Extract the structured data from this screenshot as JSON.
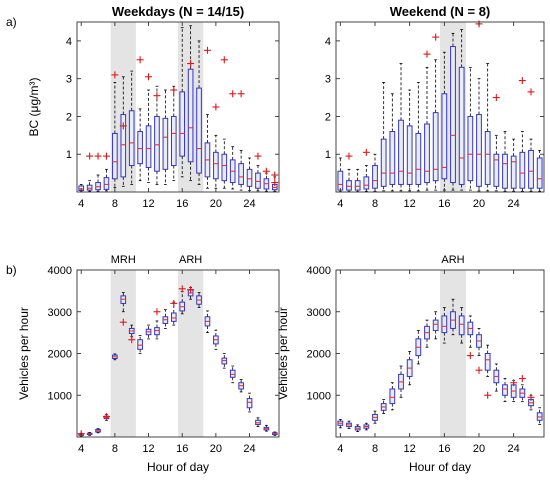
{
  "chart_data": [
    {
      "type": "box",
      "panel": "a)",
      "title": "Weekdays (N = 14/15)",
      "ylabel": "BC (μg/m³)",
      "xlabel": "",
      "xlim": [
        3.5,
        27.5
      ],
      "ylim": [
        0,
        4.5
      ],
      "xticks": [
        "4",
        "8",
        "12",
        "16",
        "20",
        "24"
      ],
      "yticks": [
        "1",
        "2",
        "3",
        "4"
      ],
      "shaded_ranges": [
        [
          7.5,
          10.5
        ],
        [
          15.5,
          18.5
        ]
      ],
      "rush_labels": [],
      "boxes": [
        {
          "x": 4,
          "q1": 0.04,
          "med": 0.08,
          "q3": 0.16,
          "wlo": 0.01,
          "whi": 0.2
        },
        {
          "x": 5,
          "q1": 0.05,
          "med": 0.1,
          "q3": 0.18,
          "wlo": 0.02,
          "whi": 0.3
        },
        {
          "x": 6,
          "q1": 0.06,
          "med": 0.14,
          "q3": 0.25,
          "wlo": 0.02,
          "whi": 0.45
        },
        {
          "x": 7,
          "q1": 0.07,
          "med": 0.2,
          "q3": 0.38,
          "wlo": 0.03,
          "whi": 0.6
        },
        {
          "x": 8,
          "q1": 0.35,
          "med": 0.8,
          "q3": 1.55,
          "wlo": 0.12,
          "whi": 2.9
        },
        {
          "x": 9,
          "q1": 0.4,
          "med": 1.25,
          "q3": 2.05,
          "wlo": 0.15,
          "whi": 3.05
        },
        {
          "x": 10,
          "q1": 0.7,
          "med": 1.3,
          "q3": 2.15,
          "wlo": 0.2,
          "whi": 3.2
        },
        {
          "x": 11,
          "q1": 0.75,
          "med": 1.15,
          "q3": 1.6,
          "wlo": 0.3,
          "whi": 2.2
        },
        {
          "x": 12,
          "q1": 0.65,
          "med": 1.15,
          "q3": 1.75,
          "wlo": 0.25,
          "whi": 2.7
        },
        {
          "x": 13,
          "q1": 0.55,
          "med": 1.25,
          "q3": 2.0,
          "wlo": 0.2,
          "whi": 2.8
        },
        {
          "x": 14,
          "q1": 0.6,
          "med": 1.45,
          "q3": 1.95,
          "wlo": 0.2,
          "whi": 2.7
        },
        {
          "x": 15,
          "q1": 0.7,
          "med": 1.55,
          "q3": 2.0,
          "wlo": 0.3,
          "whi": 2.8
        },
        {
          "x": 16,
          "q1": 0.95,
          "med": 1.55,
          "q3": 2.65,
          "wlo": 0.4,
          "whi": 4.35
        },
        {
          "x": 17,
          "q1": 0.8,
          "med": 1.7,
          "q3": 3.25,
          "wlo": 0.3,
          "whi": 4.4
        },
        {
          "x": 18,
          "q1": 0.5,
          "med": 1.15,
          "q3": 2.75,
          "wlo": 0.2,
          "whi": 4.0
        },
        {
          "x": 19,
          "q1": 0.4,
          "med": 0.85,
          "q3": 1.3,
          "wlo": 0.1,
          "whi": 2.05
        },
        {
          "x": 20,
          "q1": 0.35,
          "med": 0.75,
          "q3": 1.05,
          "wlo": 0.1,
          "whi": 1.5
        },
        {
          "x": 21,
          "q1": 0.3,
          "med": 0.7,
          "q3": 1.0,
          "wlo": 0.1,
          "whi": 1.4
        },
        {
          "x": 22,
          "q1": 0.25,
          "med": 0.55,
          "q3": 0.85,
          "wlo": 0.08,
          "whi": 1.2
        },
        {
          "x": 23,
          "q1": 0.2,
          "med": 0.4,
          "q3": 0.75,
          "wlo": 0.05,
          "whi": 1.1
        },
        {
          "x": 24,
          "q1": 0.15,
          "med": 0.35,
          "q3": 0.6,
          "wlo": 0.04,
          "whi": 0.9
        },
        {
          "x": 25,
          "q1": 0.1,
          "med": 0.28,
          "q3": 0.5,
          "wlo": 0.03,
          "whi": 0.7
        },
        {
          "x": 26,
          "q1": 0.08,
          "med": 0.22,
          "q3": 0.35,
          "wlo": 0.02,
          "whi": 0.5
        },
        {
          "x": 27,
          "q1": 0.06,
          "med": 0.12,
          "q3": 0.2,
          "wlo": 0.02,
          "whi": 0.4
        }
      ],
      "outliers": [
        {
          "x": 5,
          "y": 0.95
        },
        {
          "x": 6,
          "y": 0.95
        },
        {
          "x": 7,
          "y": 0.95
        },
        {
          "x": 8,
          "y": 3.1
        },
        {
          "x": 9,
          "y": 1.75
        },
        {
          "x": 11,
          "y": 3.5
        },
        {
          "x": 12,
          "y": 3.05
        },
        {
          "x": 13,
          "y": 2.55
        },
        {
          "x": 15,
          "y": 2.7
        },
        {
          "x": 17,
          "y": 3.4
        },
        {
          "x": 19,
          "y": 3.75
        },
        {
          "x": 20,
          "y": 2.25
        },
        {
          "x": 21,
          "y": 3.5
        },
        {
          "x": 22,
          "y": 2.6
        },
        {
          "x": 23,
          "y": 2.6
        },
        {
          "x": 25,
          "y": 0.95
        },
        {
          "x": 26,
          "y": 0.55
        },
        {
          "x": 27,
          "y": 0.45
        },
        {
          "x": 27,
          "y": 0.25
        }
      ]
    },
    {
      "type": "box",
      "panel": "",
      "title": "Weekend (N = 8)",
      "ylabel": "",
      "xlabel": "",
      "xlim": [
        3.5,
        27.5
      ],
      "ylim": [
        0,
        4.5
      ],
      "xticks": [
        "4",
        "8",
        "12",
        "16",
        "20",
        "24"
      ],
      "yticks": [
        "1",
        "2",
        "3",
        "4"
      ],
      "shaded_ranges": [
        [
          15.5,
          18.5
        ]
      ],
      "rush_labels": [],
      "boxes": [
        {
          "x": 4,
          "q1": 0.05,
          "med": 0.2,
          "q3": 0.55,
          "wlo": 0.01,
          "whi": 0.9
        },
        {
          "x": 5,
          "q1": 0.05,
          "med": 0.15,
          "q3": 0.3,
          "wlo": 0.01,
          "whi": 0.6
        },
        {
          "x": 6,
          "q1": 0.05,
          "med": 0.15,
          "q3": 0.3,
          "wlo": 0.01,
          "whi": 0.6
        },
        {
          "x": 7,
          "q1": 0.08,
          "med": 0.18,
          "q3": 0.4,
          "wlo": 0.02,
          "whi": 0.7
        },
        {
          "x": 8,
          "q1": 0.1,
          "med": 0.3,
          "q3": 0.7,
          "wlo": 0.02,
          "whi": 1.0
        },
        {
          "x": 9,
          "q1": 0.15,
          "med": 0.5,
          "q3": 1.4,
          "wlo": 0.03,
          "whi": 2.9
        },
        {
          "x": 10,
          "q1": 0.2,
          "med": 0.5,
          "q3": 1.6,
          "wlo": 0.03,
          "whi": 2.6
        },
        {
          "x": 11,
          "q1": 0.2,
          "med": 0.55,
          "q3": 1.9,
          "wlo": 0.03,
          "whi": 3.4
        },
        {
          "x": 12,
          "q1": 0.2,
          "med": 0.5,
          "q3": 1.75,
          "wlo": 0.03,
          "whi": 2.7
        },
        {
          "x": 13,
          "q1": 0.2,
          "med": 0.6,
          "q3": 1.55,
          "wlo": 0.03,
          "whi": 2.9
        },
        {
          "x": 14,
          "q1": 0.25,
          "med": 0.55,
          "q3": 1.8,
          "wlo": 0.05,
          "whi": 3.3
        },
        {
          "x": 15,
          "q1": 0.3,
          "med": 0.6,
          "q3": 2.1,
          "wlo": 0.05,
          "whi": 3.5
        },
        {
          "x": 16,
          "q1": 0.35,
          "med": 0.65,
          "q3": 2.6,
          "wlo": 0.05,
          "whi": 3.7
        },
        {
          "x": 17,
          "q1": 0.25,
          "med": 1.5,
          "q3": 3.85,
          "wlo": 0.05,
          "whi": 4.2
        },
        {
          "x": 18,
          "q1": 0.2,
          "med": 0.9,
          "q3": 3.3,
          "wlo": 0.05,
          "whi": 4.3
        },
        {
          "x": 19,
          "q1": 0.3,
          "med": 1.0,
          "q3": 2.0,
          "wlo": 0.05,
          "whi": 3.3
        },
        {
          "x": 20,
          "q1": 0.15,
          "med": 1.0,
          "q3": 2.05,
          "wlo": 0.03,
          "whi": 3.0
        },
        {
          "x": 21,
          "q1": 0.2,
          "med": 1.0,
          "q3": 1.6,
          "wlo": 0.03,
          "whi": 3.4
        },
        {
          "x": 22,
          "q1": 0.15,
          "med": 0.85,
          "q3": 1.0,
          "wlo": 0.03,
          "whi": 1.5
        },
        {
          "x": 23,
          "q1": 0.1,
          "med": 0.75,
          "q3": 1.0,
          "wlo": 0.02,
          "whi": 1.6
        },
        {
          "x": 24,
          "q1": 0.1,
          "med": 0.8,
          "q3": 0.95,
          "wlo": 0.02,
          "whi": 1.4
        },
        {
          "x": 25,
          "q1": 0.1,
          "med": 0.5,
          "q3": 1.05,
          "wlo": 0.02,
          "whi": 1.6
        },
        {
          "x": 26,
          "q1": 0.1,
          "med": 0.55,
          "q3": 1.1,
          "wlo": 0.02,
          "whi": 1.4
        },
        {
          "x": 27,
          "q1": 0.1,
          "med": 0.35,
          "q3": 0.9,
          "wlo": 0.02,
          "whi": 1.1
        }
      ],
      "outliers": [
        {
          "x": 5,
          "y": 0.95
        },
        {
          "x": 7,
          "y": 1.05
        },
        {
          "x": 14,
          "y": 3.65
        },
        {
          "x": 15,
          "y": 4.1
        },
        {
          "x": 20,
          "y": 4.45
        },
        {
          "x": 22,
          "y": 2.5
        },
        {
          "x": 25,
          "y": 2.95
        },
        {
          "x": 26,
          "y": 2.65
        }
      ]
    },
    {
      "type": "box",
      "panel": "b)",
      "title": "",
      "ylabel": "Vehicles per hour",
      "xlabel": "Hour of day",
      "xlim": [
        3.5,
        27.5
      ],
      "ylim": [
        0,
        4000
      ],
      "xticks": [
        "4",
        "8",
        "12",
        "16",
        "20",
        "24"
      ],
      "yticks": [
        "1000",
        "2000",
        "3000",
        "4000"
      ],
      "shaded_ranges": [
        [
          7.5,
          10.5
        ],
        [
          15.5,
          18.5
        ]
      ],
      "rush_labels": [
        {
          "x": 9,
          "text": "MRH"
        },
        {
          "x": 17,
          "text": "ARH"
        }
      ],
      "boxes": [
        {
          "x": 4,
          "q1": 40,
          "med": 55,
          "q3": 70,
          "wlo": 20,
          "whi": 90
        },
        {
          "x": 5,
          "q1": 60,
          "med": 75,
          "q3": 90,
          "wlo": 40,
          "whi": 110
        },
        {
          "x": 6,
          "q1": 120,
          "med": 150,
          "q3": 180,
          "wlo": 100,
          "whi": 200
        },
        {
          "x": 7,
          "q1": 440,
          "med": 470,
          "q3": 500,
          "wlo": 400,
          "whi": 540
        },
        {
          "x": 8,
          "q1": 1880,
          "med": 1920,
          "q3": 1960,
          "wlo": 1850,
          "whi": 1990
        },
        {
          "x": 9,
          "q1": 3200,
          "med": 3300,
          "q3": 3380,
          "wlo": 3000,
          "whi": 3460
        },
        {
          "x": 10,
          "q1": 2480,
          "med": 2540,
          "q3": 2600,
          "wlo": 2400,
          "whi": 2680
        },
        {
          "x": 11,
          "q1": 2100,
          "med": 2200,
          "q3": 2330,
          "wlo": 2000,
          "whi": 2430
        },
        {
          "x": 12,
          "q1": 2450,
          "med": 2520,
          "q3": 2580,
          "wlo": 2350,
          "whi": 2680
        },
        {
          "x": 13,
          "q1": 2450,
          "med": 2550,
          "q3": 2620,
          "wlo": 2350,
          "whi": 2780
        },
        {
          "x": 14,
          "q1": 2720,
          "med": 2810,
          "q3": 2880,
          "wlo": 2600,
          "whi": 3050
        },
        {
          "x": 15,
          "q1": 2770,
          "med": 2850,
          "q3": 2970,
          "wlo": 2680,
          "whi": 3230
        },
        {
          "x": 16,
          "q1": 3020,
          "med": 3120,
          "q3": 3230,
          "wlo": 2950,
          "whi": 3480
        },
        {
          "x": 17,
          "q1": 3380,
          "med": 3450,
          "q3": 3520,
          "wlo": 3300,
          "whi": 3580
        },
        {
          "x": 18,
          "q1": 3180,
          "med": 3280,
          "q3": 3380,
          "wlo": 3100,
          "whi": 3460
        },
        {
          "x": 19,
          "q1": 2660,
          "med": 2770,
          "q3": 2880,
          "wlo": 2500,
          "whi": 3020
        },
        {
          "x": 20,
          "q1": 2230,
          "med": 2330,
          "q3": 2420,
          "wlo": 2100,
          "whi": 2560
        },
        {
          "x": 21,
          "q1": 1750,
          "med": 1830,
          "q3": 1890,
          "wlo": 1650,
          "whi": 2000
        },
        {
          "x": 22,
          "q1": 1430,
          "med": 1500,
          "q3": 1600,
          "wlo": 1300,
          "whi": 1700
        },
        {
          "x": 23,
          "q1": 1150,
          "med": 1230,
          "q3": 1300,
          "wlo": 1080,
          "whi": 1380
        },
        {
          "x": 24,
          "q1": 700,
          "med": 830,
          "q3": 920,
          "wlo": 600,
          "whi": 1050
        },
        {
          "x": 25,
          "q1": 300,
          "med": 340,
          "q3": 400,
          "wlo": 250,
          "whi": 460
        },
        {
          "x": 26,
          "q1": 170,
          "med": 200,
          "q3": 230,
          "wlo": 140,
          "whi": 280
        },
        {
          "x": 27,
          "q1": 60,
          "med": 80,
          "q3": 100,
          "wlo": 40,
          "whi": 120
        }
      ],
      "outliers": [
        {
          "x": 4,
          "y": 80
        },
        {
          "x": 7,
          "y": 490
        },
        {
          "x": 9,
          "y": 2750
        },
        {
          "x": 10,
          "y": 2330
        },
        {
          "x": 13,
          "y": 3000
        },
        {
          "x": 15,
          "y": 3200
        },
        {
          "x": 16,
          "y": 3550
        },
        {
          "x": 17,
          "y": 3530
        }
      ]
    },
    {
      "type": "box",
      "panel": "",
      "title": "",
      "ylabel": "Vehicles per hour",
      "xlabel": "Hour of day",
      "xlim": [
        3.5,
        27.5
      ],
      "ylim": [
        0,
        4000
      ],
      "xticks": [
        "4",
        "8",
        "12",
        "16",
        "20",
        "24"
      ],
      "yticks": [
        "1000",
        "2000",
        "3000",
        "4000"
      ],
      "shaded_ranges": [
        [
          15.5,
          18.5
        ]
      ],
      "rush_labels": [
        {
          "x": 17,
          "text": "ARH"
        }
      ],
      "boxes": [
        {
          "x": 4,
          "q1": 280,
          "med": 330,
          "q3": 380,
          "wlo": 220,
          "whi": 420
        },
        {
          "x": 5,
          "q1": 250,
          "med": 290,
          "q3": 330,
          "wlo": 200,
          "whi": 380
        },
        {
          "x": 6,
          "q1": 170,
          "med": 210,
          "q3": 250,
          "wlo": 130,
          "whi": 290
        },
        {
          "x": 7,
          "q1": 210,
          "med": 250,
          "q3": 290,
          "wlo": 170,
          "whi": 330
        },
        {
          "x": 8,
          "q1": 400,
          "med": 470,
          "q3": 540,
          "wlo": 330,
          "whi": 620
        },
        {
          "x": 9,
          "q1": 640,
          "med": 720,
          "q3": 800,
          "wlo": 560,
          "whi": 900
        },
        {
          "x": 10,
          "q1": 800,
          "med": 950,
          "q3": 1150,
          "wlo": 650,
          "whi": 1300
        },
        {
          "x": 11,
          "q1": 1150,
          "med": 1320,
          "q3": 1500,
          "wlo": 950,
          "whi": 1700
        },
        {
          "x": 12,
          "q1": 1450,
          "med": 1650,
          "q3": 1850,
          "wlo": 1250,
          "whi": 2050
        },
        {
          "x": 13,
          "q1": 1950,
          "med": 2150,
          "q3": 2350,
          "wlo": 1750,
          "whi": 2550
        },
        {
          "x": 14,
          "q1": 2350,
          "med": 2500,
          "q3": 2650,
          "wlo": 2150,
          "whi": 2800
        },
        {
          "x": 15,
          "q1": 2550,
          "med": 2700,
          "q3": 2800,
          "wlo": 2350,
          "whi": 3000
        },
        {
          "x": 16,
          "q1": 2500,
          "med": 2650,
          "q3": 2900,
          "wlo": 2250,
          "whi": 3100
        },
        {
          "x": 17,
          "q1": 2600,
          "med": 2800,
          "q3": 3000,
          "wlo": 2450,
          "whi": 3300
        },
        {
          "x": 18,
          "q1": 2450,
          "med": 2700,
          "q3": 2900,
          "wlo": 2250,
          "whi": 3100
        },
        {
          "x": 19,
          "q1": 2450,
          "med": 2600,
          "q3": 2750,
          "wlo": 2150,
          "whi": 2900
        },
        {
          "x": 20,
          "q1": 2150,
          "med": 2300,
          "q3": 2450,
          "wlo": 1950,
          "whi": 2600
        },
        {
          "x": 21,
          "q1": 1600,
          "med": 1850,
          "q3": 2000,
          "wlo": 1450,
          "whi": 2200
        },
        {
          "x": 22,
          "q1": 1300,
          "med": 1450,
          "q3": 1600,
          "wlo": 1100,
          "whi": 1750
        },
        {
          "x": 23,
          "q1": 1000,
          "med": 1150,
          "q3": 1250,
          "wlo": 850,
          "whi": 1400
        },
        {
          "x": 24,
          "q1": 950,
          "med": 1100,
          "q3": 1250,
          "wlo": 850,
          "whi": 1350
        },
        {
          "x": 25,
          "q1": 950,
          "med": 1050,
          "q3": 1150,
          "wlo": 850,
          "whi": 1250
        },
        {
          "x": 26,
          "q1": 750,
          "med": 820,
          "q3": 900,
          "wlo": 650,
          "whi": 1000
        },
        {
          "x": 27,
          "q1": 400,
          "med": 480,
          "q3": 580,
          "wlo": 300,
          "whi": 700
        }
      ],
      "outliers": [
        {
          "x": 19,
          "y": 1950
        },
        {
          "x": 20,
          "y": 1600
        },
        {
          "x": 21,
          "y": 1000
        },
        {
          "x": 24,
          "y": 1300
        },
        {
          "x": 25,
          "y": 1400
        },
        {
          "x": 26,
          "y": 950
        }
      ]
    }
  ],
  "colors": {
    "box": "#3434c8",
    "box_fill": "#e8ecf6",
    "median": "#ee3333",
    "outlier": "#e01818",
    "whisker": "#000000",
    "shade": "#e4e4e4",
    "axis": "#333333"
  }
}
